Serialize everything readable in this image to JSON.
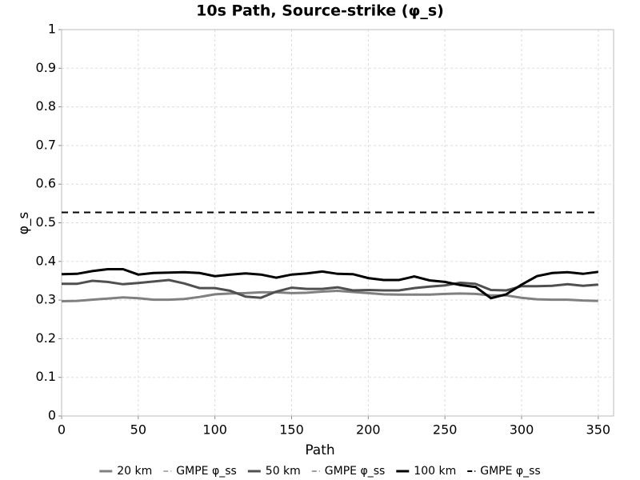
{
  "chart_data": {
    "type": "line",
    "title": "10s Path, Source-strike (φ_s)",
    "x_label": "Path",
    "y_label": "φ_s",
    "x": [
      0,
      10,
      20,
      30,
      40,
      50,
      60,
      70,
      80,
      90,
      100,
      110,
      120,
      130,
      140,
      150,
      160,
      170,
      180,
      190,
      200,
      210,
      220,
      230,
      240,
      250,
      260,
      270,
      280,
      290,
      300,
      310,
      320,
      330,
      340,
      350
    ],
    "series": [
      {
        "name": "20 km",
        "color": "#808080",
        "linestyle": "solid",
        "values": [
          0.297,
          0.298,
          0.301,
          0.304,
          0.307,
          0.305,
          0.301,
          0.301,
          0.303,
          0.308,
          0.315,
          0.317,
          0.318,
          0.32,
          0.32,
          0.318,
          0.319,
          0.322,
          0.324,
          0.321,
          0.318,
          0.315,
          0.314,
          0.314,
          0.314,
          0.316,
          0.317,
          0.316,
          0.312,
          0.312,
          0.306,
          0.302,
          0.301,
          0.301,
          0.299,
          0.298
        ]
      },
      {
        "name": "GMPE φ_ss",
        "color": "#b0b0b0",
        "linestyle": "dashed",
        "values": [
          0.527,
          0.527,
          0.527,
          0.527,
          0.527,
          0.527,
          0.527,
          0.527,
          0.527,
          0.527,
          0.527,
          0.527,
          0.527,
          0.527,
          0.527,
          0.527,
          0.527,
          0.527,
          0.527,
          0.527,
          0.527,
          0.527,
          0.527,
          0.527,
          0.527,
          0.527,
          0.527,
          0.527,
          0.527,
          0.527,
          0.527,
          0.527,
          0.527,
          0.527,
          0.527,
          0.527
        ]
      },
      {
        "name": "50 km",
        "color": "#505050",
        "linestyle": "solid",
        "values": [
          0.342,
          0.342,
          0.35,
          0.347,
          0.341,
          0.344,
          0.348,
          0.352,
          0.343,
          0.331,
          0.331,
          0.324,
          0.309,
          0.306,
          0.322,
          0.332,
          0.329,
          0.329,
          0.333,
          0.325,
          0.326,
          0.325,
          0.325,
          0.331,
          0.335,
          0.338,
          0.345,
          0.342,
          0.326,
          0.325,
          0.336,
          0.336,
          0.337,
          0.341,
          0.337,
          0.34
        ]
      },
      {
        "name": "GMPE φ_ss",
        "color": "#a0a0a0",
        "linestyle": "dashed",
        "values": [
          0.527,
          0.527,
          0.527,
          0.527,
          0.527,
          0.527,
          0.527,
          0.527,
          0.527,
          0.527,
          0.527,
          0.527,
          0.527,
          0.527,
          0.527,
          0.527,
          0.527,
          0.527,
          0.527,
          0.527,
          0.527,
          0.527,
          0.527,
          0.527,
          0.527,
          0.527,
          0.527,
          0.527,
          0.527,
          0.527,
          0.527,
          0.527,
          0.527,
          0.527,
          0.527,
          0.527
        ]
      },
      {
        "name": "100 km",
        "color": "#000000",
        "linestyle": "solid",
        "values": [
          0.367,
          0.368,
          0.375,
          0.38,
          0.38,
          0.366,
          0.37,
          0.371,
          0.372,
          0.37,
          0.362,
          0.366,
          0.369,
          0.366,
          0.358,
          0.366,
          0.369,
          0.374,
          0.368,
          0.367,
          0.357,
          0.352,
          0.352,
          0.361,
          0.351,
          0.347,
          0.339,
          0.334,
          0.305,
          0.315,
          0.34,
          0.362,
          0.37,
          0.372,
          0.368,
          0.373
        ]
      },
      {
        "name": "GMPE φ_ss",
        "color": "#000000",
        "linestyle": "dashed",
        "values": [
          0.527,
          0.527,
          0.527,
          0.527,
          0.527,
          0.527,
          0.527,
          0.527,
          0.527,
          0.527,
          0.527,
          0.527,
          0.527,
          0.527,
          0.527,
          0.527,
          0.527,
          0.527,
          0.527,
          0.527,
          0.527,
          0.527,
          0.527,
          0.527,
          0.527,
          0.527,
          0.527,
          0.527,
          0.527,
          0.527,
          0.527,
          0.527,
          0.527,
          0.527,
          0.527,
          0.527
        ]
      }
    ],
    "xlim": [
      0,
      360
    ],
    "xticks": [
      0,
      50,
      100,
      150,
      200,
      250,
      300,
      350
    ],
    "ylim": [
      0,
      1
    ],
    "yticks": [
      0,
      0.1,
      0.2,
      0.3,
      0.4,
      0.5,
      0.6,
      0.7,
      0.8,
      0.9,
      1
    ],
    "grid": true,
    "legend": "bottom"
  }
}
